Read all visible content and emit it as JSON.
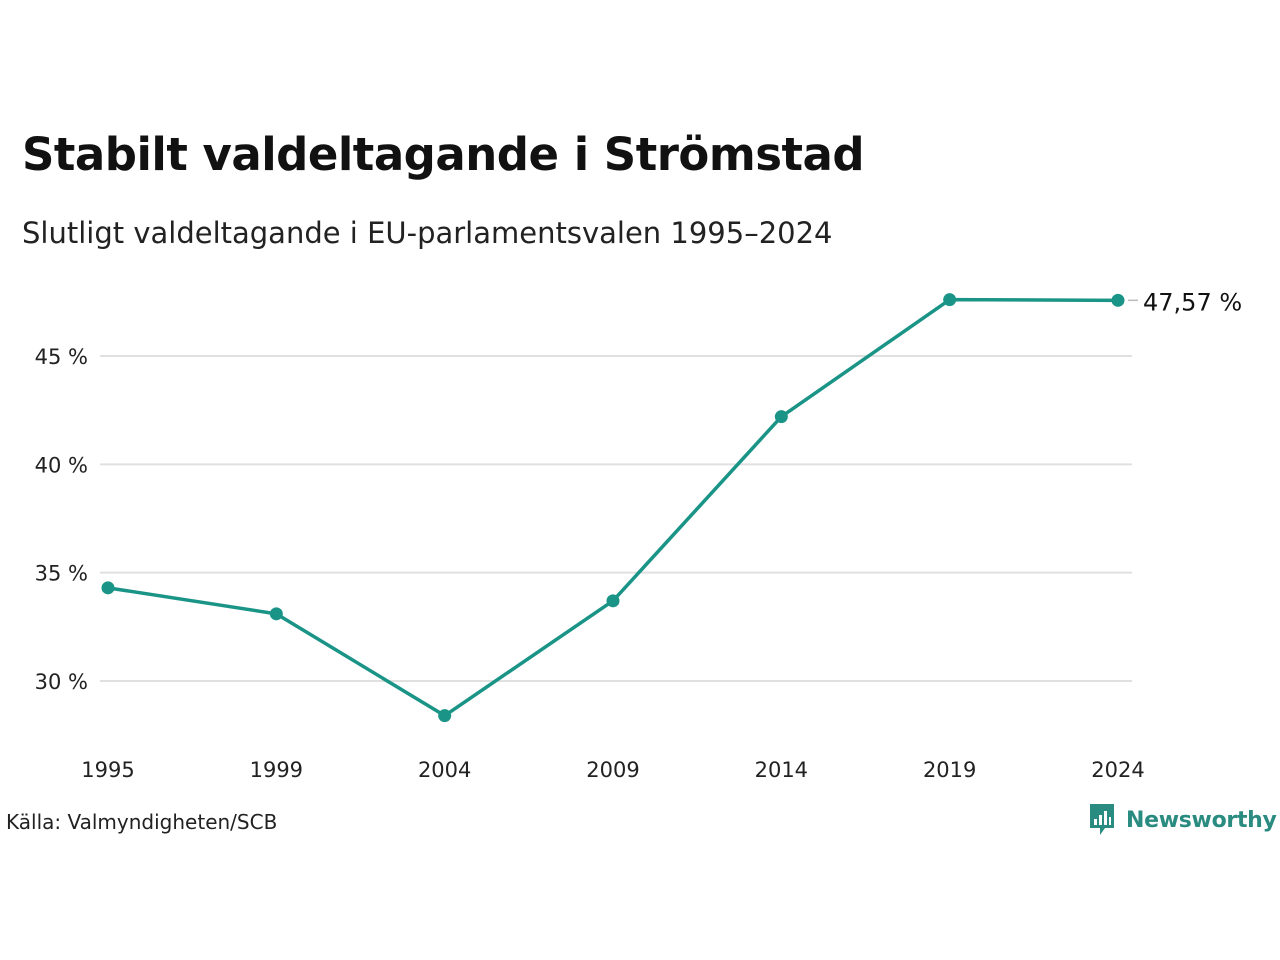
{
  "header": {
    "title": "Stabilt valdeltagande i Strömstad",
    "subtitle": "Slutligt valdeltagande i EU-parlamentsvalen 1995–2024"
  },
  "footer": {
    "source": "Källa: Valmyndigheten/SCB",
    "brand": "Newsworthy"
  },
  "colors": {
    "line": "#1a9486",
    "grid": "#e0e0e0",
    "brand": "#2a8b80"
  },
  "icons": {
    "brand": "newsworthy-logo-icon"
  },
  "chart_data": {
    "type": "line",
    "x": [
      "1995",
      "1999",
      "2004",
      "2009",
      "2014",
      "2019",
      "2024"
    ],
    "series": [
      {
        "values": [
          34.3,
          33.1,
          28.4,
          33.7,
          42.2,
          47.6,
          47.57
        ]
      }
    ],
    "yticks": [
      30,
      35,
      40,
      45
    ],
    "ytick_labels": [
      "30 %",
      "35 %",
      "40 %",
      "45 %"
    ],
    "ylim": [
      27.5,
      48
    ],
    "end_label": "47,57 %",
    "grid": true,
    "xlabel": "",
    "ylabel": ""
  }
}
